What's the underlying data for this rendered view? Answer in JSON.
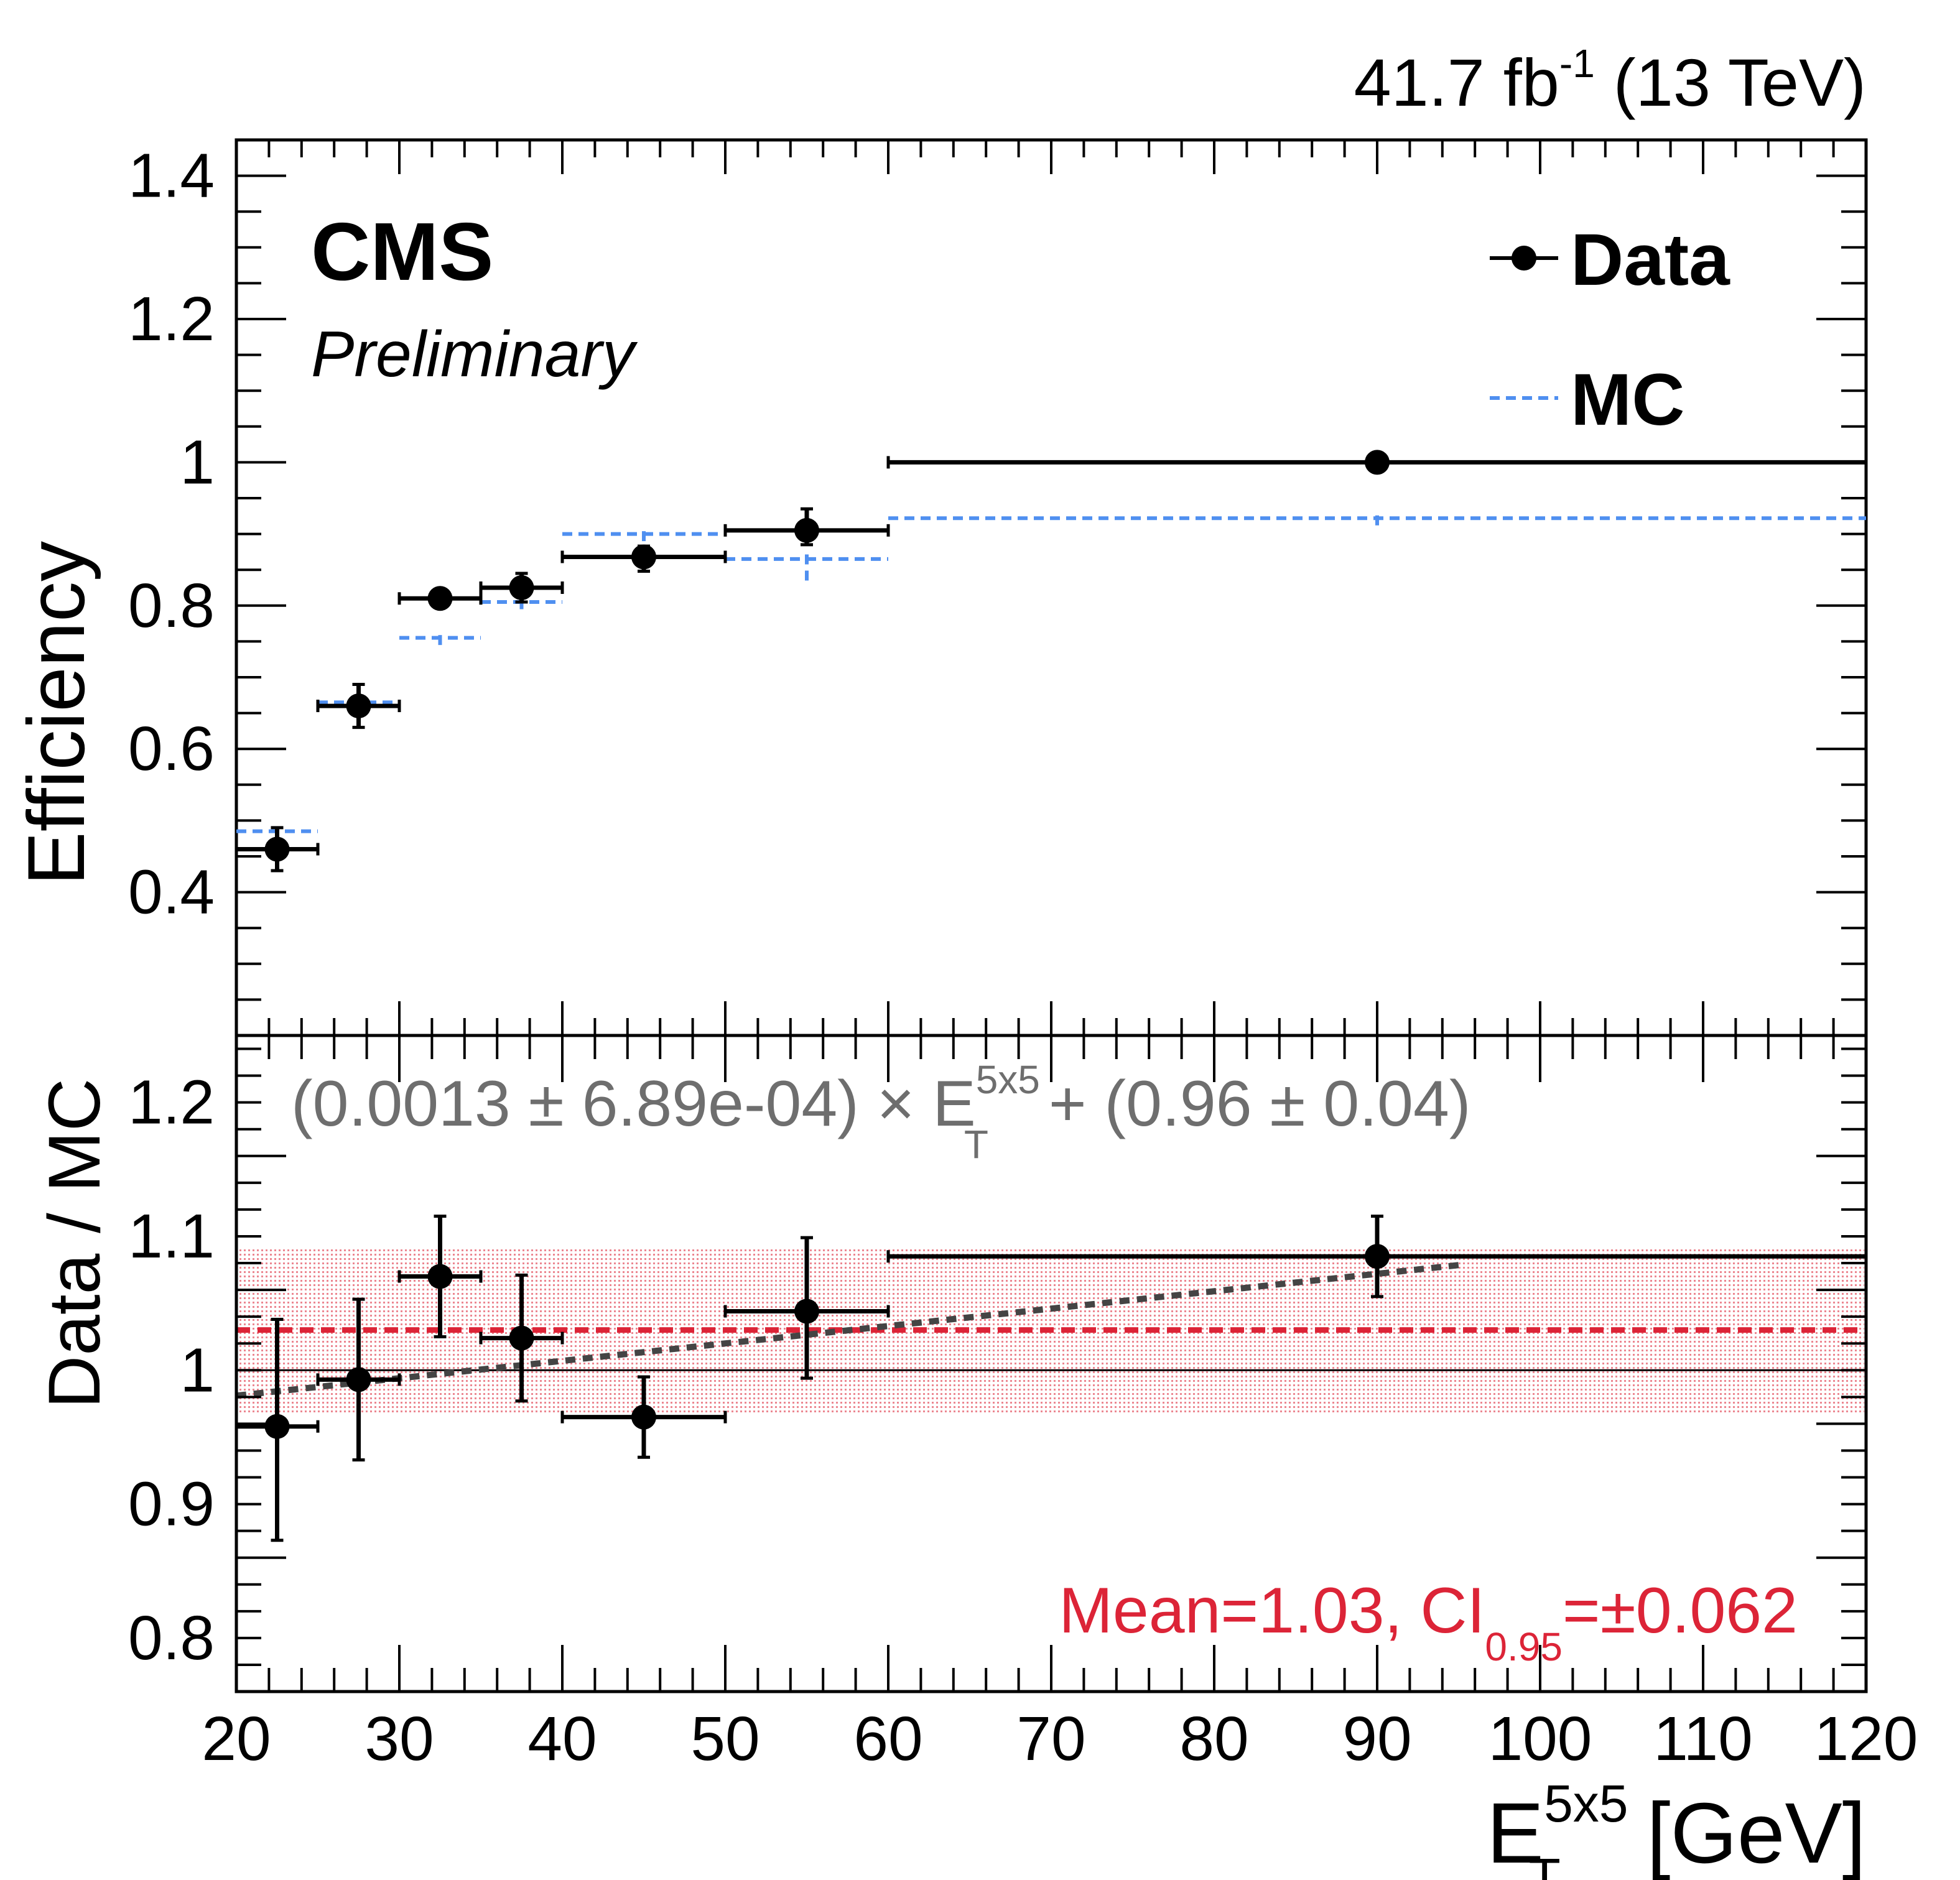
{
  "chart_data": [
    {
      "type": "scatter",
      "panel": "efficiency",
      "title": "",
      "top_right_label": {
        "lumi": "41.7 fb",
        "lumi_exp": "-1",
        "energy": " (13 TeV)"
      },
      "experiment": "CMS",
      "status": "Preliminary",
      "ylabel": "Efficiency",
      "xlim": [
        20,
        120
      ],
      "ylim": [
        0.2,
        1.45
      ],
      "yticks": [
        "0.4",
        "0.6",
        "0.8",
        "1",
        "1.2",
        "1.4"
      ],
      "legend": {
        "position": "top-right",
        "entries": [
          "Data",
          "MC"
        ]
      },
      "series": [
        {
          "name": "Data",
          "color": "#000000",
          "points": [
            {
              "x": 22.5,
              "xlo": 20,
              "xhi": 25,
              "y": 0.46,
              "elo": 0.03,
              "ehi": 0.03
            },
            {
              "x": 27.5,
              "xlo": 25,
              "xhi": 30,
              "y": 0.66,
              "elo": 0.03,
              "ehi": 0.03
            },
            {
              "x": 32.5,
              "xlo": 30,
              "xhi": 35,
              "y": 0.81,
              "elo": 0.01,
              "ehi": 0.01
            },
            {
              "x": 37.5,
              "xlo": 35,
              "xhi": 40,
              "y": 0.825,
              "elo": 0.02,
              "ehi": 0.02
            },
            {
              "x": 45,
              "xlo": 40,
              "xhi": 50,
              "y": 0.868,
              "elo": 0.02,
              "ehi": 0.015
            },
            {
              "x": 55,
              "xlo": 50,
              "xhi": 60,
              "y": 0.905,
              "elo": 0.02,
              "ehi": 0.03
            },
            {
              "x": 90,
              "xlo": 60,
              "xhi": 120,
              "y": 1.0,
              "elo": 0.0,
              "ehi": 0.0
            }
          ]
        },
        {
          "name": "MC",
          "color": "#4f8ff0",
          "points": [
            {
              "x": 22.5,
              "xlo": 20,
              "xhi": 25,
              "y": 0.485,
              "elo": 0.01,
              "ehi": 0.01
            },
            {
              "x": 27.5,
              "xlo": 25,
              "xhi": 30,
              "y": 0.665,
              "elo": 0.01,
              "ehi": 0.01
            },
            {
              "x": 32.5,
              "xlo": 30,
              "xhi": 35,
              "y": 0.755,
              "elo": 0.01,
              "ehi": 0.01
            },
            {
              "x": 37.5,
              "xlo": 35,
              "xhi": 40,
              "y": 0.805,
              "elo": 0.01,
              "ehi": 0.01
            },
            {
              "x": 45,
              "xlo": 40,
              "xhi": 50,
              "y": 0.9,
              "elo": 0.01,
              "ehi": 0.01
            },
            {
              "x": 55,
              "xlo": 50,
              "xhi": 60,
              "y": 0.865,
              "elo": 0.03,
              "ehi": 0.01
            },
            {
              "x": 90,
              "xlo": 60,
              "xhi": 120,
              "y": 0.922,
              "elo": 0.01,
              "ehi": 0.01
            }
          ]
        }
      ]
    },
    {
      "type": "scatter",
      "panel": "ratio",
      "ylabel": "Data / MC",
      "xlabel": "E",
      "xlabel_sup": "5x5",
      "xlabel_sub": "T",
      "xlabel_unit": " [GeV]",
      "xlim": [
        20,
        120
      ],
      "ylim": [
        0.76,
        1.25
      ],
      "xticks": [
        "20",
        "30",
        "40",
        "50",
        "60",
        "70",
        "80",
        "90",
        "100",
        "110",
        "120"
      ],
      "yticks": [
        "0.8",
        "0.9",
        "1",
        "1.1",
        "1.2"
      ],
      "reference_line": 1.0,
      "fit": {
        "formula_left": "(0.0013 ± 6.89e-04) × E",
        "formula_sup": "5x5",
        "formula_sub": "T",
        "formula_right": " + (0.96 ± 0.04)",
        "slope": 0.0013,
        "intercept": 0.955,
        "range": [
          20,
          95
        ],
        "color": "#444444"
      },
      "mean": {
        "value": 1.03,
        "ci95": 0.062,
        "label_left": "Mean=1.03, CI",
        "label_sub": "0.95",
        "label_right": "=±0.062",
        "color": "#dc2437"
      },
      "points": [
        {
          "x": 22.5,
          "xlo": 20,
          "xhi": 25,
          "y": 0.958,
          "elo": 0.085,
          "ehi": 0.08
        },
        {
          "x": 27.5,
          "xlo": 25,
          "xhi": 30,
          "y": 0.993,
          "elo": 0.06,
          "ehi": 0.06
        },
        {
          "x": 32.5,
          "xlo": 30,
          "xhi": 35,
          "y": 1.07,
          "elo": 0.045,
          "ehi": 0.045
        },
        {
          "x": 37.5,
          "xlo": 35,
          "xhi": 40,
          "y": 1.024,
          "elo": 0.047,
          "ehi": 0.047
        },
        {
          "x": 45,
          "xlo": 40,
          "xhi": 50,
          "y": 0.965,
          "elo": 0.03,
          "ehi": 0.03
        },
        {
          "x": 55,
          "xlo": 50,
          "xhi": 60,
          "y": 1.044,
          "elo": 0.05,
          "ehi": 0.055
        },
        {
          "x": 90,
          "xlo": 60,
          "xhi": 120,
          "y": 1.085,
          "elo": 0.03,
          "ehi": 0.03
        }
      ]
    }
  ]
}
